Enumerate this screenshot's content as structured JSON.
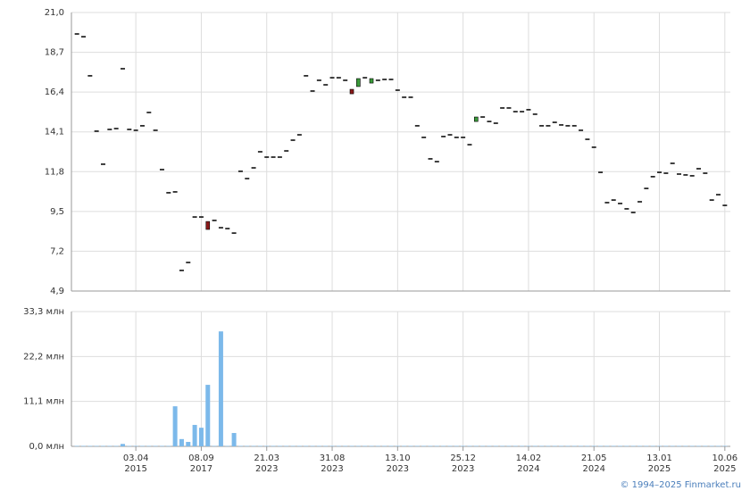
{
  "chart_data": [
    {
      "type": "candlestick",
      "up_color": "#3a9a3a",
      "down_color": "#8b1a1a",
      "flat_color": "#000000",
      "ylim": [
        4.9,
        21.0
      ],
      "yticks": [
        {
          "value": 4.9,
          "label": "4,9"
        },
        {
          "value": 7.2,
          "label": "7,2"
        },
        {
          "value": 9.5,
          "label": "9,5"
        },
        {
          "value": 11.8,
          "label": "11,8"
        },
        {
          "value": 14.1,
          "label": "14,1"
        },
        {
          "value": 16.4,
          "label": "16,4"
        },
        {
          "value": 18.7,
          "label": "18,7"
        },
        {
          "value": 21.0,
          "label": "21,0"
        }
      ],
      "grid": true,
      "open": [
        19.76,
        19.6,
        17.34,
        14.14,
        12.23,
        14.24,
        14.29,
        17.75,
        14.24,
        14.19,
        14.45,
        15.22,
        14.19,
        11.92,
        10.58,
        10.63,
        6.09,
        6.55,
        9.18,
        9.18,
        8.92,
        8.98,
        8.56,
        8.51,
        8.25,
        11.82,
        11.4,
        12.02,
        12.95,
        12.64,
        12.64,
        12.64,
        13.0,
        13.62,
        13.93,
        17.34,
        16.46,
        17.08,
        16.82,
        17.23,
        17.23,
        17.08,
        16.56,
        16.72,
        17.23,
        16.92,
        17.08,
        17.13,
        17.13,
        16.51,
        16.1,
        16.1,
        14.45,
        13.78,
        12.54,
        12.38,
        13.83,
        13.93,
        13.78,
        13.78,
        13.36,
        14.7,
        14.96,
        14.7,
        14.6,
        15.48,
        15.48,
        15.27,
        15.27,
        15.38,
        15.12,
        14.45,
        14.45,
        14.65,
        14.5,
        14.45,
        14.45,
        14.19,
        13.67,
        13.21,
        11.76,
        10.01,
        10.16,
        9.96,
        9.65,
        9.44,
        10.06,
        10.83,
        11.51,
        11.76,
        11.71,
        12.28,
        11.66,
        11.61,
        11.56,
        11.97,
        11.71,
        10.16,
        10.47,
        9.85
      ],
      "close": [
        19.76,
        19.6,
        17.34,
        14.14,
        12.23,
        14.24,
        14.29,
        17.75,
        14.24,
        14.19,
        14.45,
        15.22,
        14.19,
        11.92,
        10.58,
        10.63,
        6.09,
        6.55,
        9.18,
        9.18,
        8.46,
        8.98,
        8.56,
        8.51,
        8.25,
        11.82,
        11.4,
        12.02,
        12.95,
        12.64,
        12.64,
        12.64,
        13.0,
        13.62,
        13.93,
        17.34,
        16.46,
        17.08,
        16.82,
        17.23,
        17.23,
        17.08,
        16.3,
        17.18,
        17.23,
        17.18,
        17.08,
        17.13,
        17.13,
        16.51,
        16.1,
        16.1,
        14.45,
        13.78,
        12.54,
        12.38,
        13.83,
        13.93,
        13.78,
        13.78,
        13.36,
        14.96,
        14.96,
        14.7,
        14.6,
        15.48,
        15.48,
        15.27,
        15.27,
        15.38,
        15.12,
        14.45,
        14.45,
        14.65,
        14.5,
        14.45,
        14.45,
        14.19,
        13.67,
        13.21,
        11.76,
        10.01,
        10.16,
        9.96,
        9.65,
        9.44,
        10.06,
        10.83,
        11.51,
        11.76,
        11.71,
        12.28,
        11.66,
        11.61,
        11.56,
        11.97,
        11.71,
        10.16,
        10.47,
        9.85
      ]
    },
    {
      "type": "bar",
      "color": "#7cb9ea",
      "ylim": [
        0,
        33.3
      ],
      "yticks": [
        {
          "value": 0,
          "label": "0,0 млн"
        },
        {
          "value": 11.1,
          "label": "11,1 млн"
        },
        {
          "value": 22.2,
          "label": "22,2 млн"
        },
        {
          "value": 33.3,
          "label": "33,3 млн"
        }
      ],
      "grid": true,
      "categories": [
        null,
        null,
        null,
        null,
        null,
        null,
        null,
        null,
        null,
        "03.04",
        null,
        null,
        null,
        null,
        null,
        null,
        null,
        null,
        null,
        "08.09",
        null,
        null,
        null,
        null,
        null,
        null,
        null,
        null,
        null,
        "21.03",
        null,
        null,
        null,
        null,
        null,
        null,
        null,
        null,
        null,
        "31.08",
        null,
        null,
        null,
        null,
        null,
        null,
        null,
        null,
        null,
        "13.10",
        null,
        null,
        null,
        null,
        null,
        null,
        null,
        null,
        null,
        "25.12",
        null,
        null,
        null,
        null,
        null,
        null,
        null,
        null,
        null,
        "14.02",
        null,
        null,
        null,
        null,
        null,
        null,
        null,
        null,
        null,
        "21.05",
        null,
        null,
        null,
        null,
        null,
        null,
        null,
        null,
        null,
        "13.01",
        null,
        null,
        null,
        null,
        null,
        null,
        null,
        null,
        null,
        "10.06"
      ],
      "category_years": [
        null,
        null,
        null,
        null,
        null,
        null,
        null,
        null,
        null,
        "2015",
        null,
        null,
        null,
        null,
        null,
        null,
        null,
        null,
        null,
        "2017",
        null,
        null,
        null,
        null,
        null,
        null,
        null,
        null,
        null,
        "2023",
        null,
        null,
        null,
        null,
        null,
        null,
        null,
        null,
        null,
        "2023",
        null,
        null,
        null,
        null,
        null,
        null,
        null,
        null,
        null,
        "2023",
        null,
        null,
        null,
        null,
        null,
        null,
        null,
        null,
        null,
        "2023",
        null,
        null,
        null,
        null,
        null,
        null,
        null,
        null,
        null,
        "2024",
        null,
        null,
        null,
        null,
        null,
        null,
        null,
        null,
        null,
        "2024",
        null,
        null,
        null,
        null,
        null,
        null,
        null,
        null,
        null,
        "2025",
        null,
        null,
        null,
        null,
        null,
        null,
        null,
        null,
        null,
        "2025"
      ],
      "values": [
        0.1,
        0.1,
        0.1,
        0.1,
        0.1,
        0.1,
        0.1,
        0.6,
        0.1,
        0.1,
        0.1,
        0.1,
        0.1,
        0.1,
        0.1,
        9.9,
        1.8,
        1.1,
        5.3,
        4.6,
        15.2,
        0.1,
        28.4,
        0.1,
        3.3,
        0.1,
        0.1,
        0.1,
        0.1,
        0.1,
        0.1,
        0.1,
        0.1,
        0.1,
        0.1,
        0.1,
        0.1,
        0.1,
        0.1,
        0.1,
        0.1,
        0.1,
        0.1,
        0.1,
        0.1,
        0.1,
        0.1,
        0.1,
        0.1,
        0.1,
        0.1,
        0.1,
        0.1,
        0.1,
        0.1,
        0.1,
        0.1,
        0.1,
        0.1,
        0.1,
        0.1,
        0.1,
        0.1,
        0.1,
        0.1,
        0.1,
        0.1,
        0.1,
        0.1,
        0.1,
        0.1,
        0.1,
        0.1,
        0.1,
        0.1,
        0.1,
        0.1,
        0.1,
        0.1,
        0.1,
        0.1,
        0.1,
        0.1,
        0.1,
        0.1,
        0.1,
        0.1,
        0.1,
        0.1,
        0.1,
        0.1,
        0.1,
        0.1,
        0.1,
        0.1,
        0.1,
        0.1,
        0.1,
        0.1,
        0.1
      ]
    }
  ],
  "credit": "© 1994–2025 Finmarket.ru"
}
